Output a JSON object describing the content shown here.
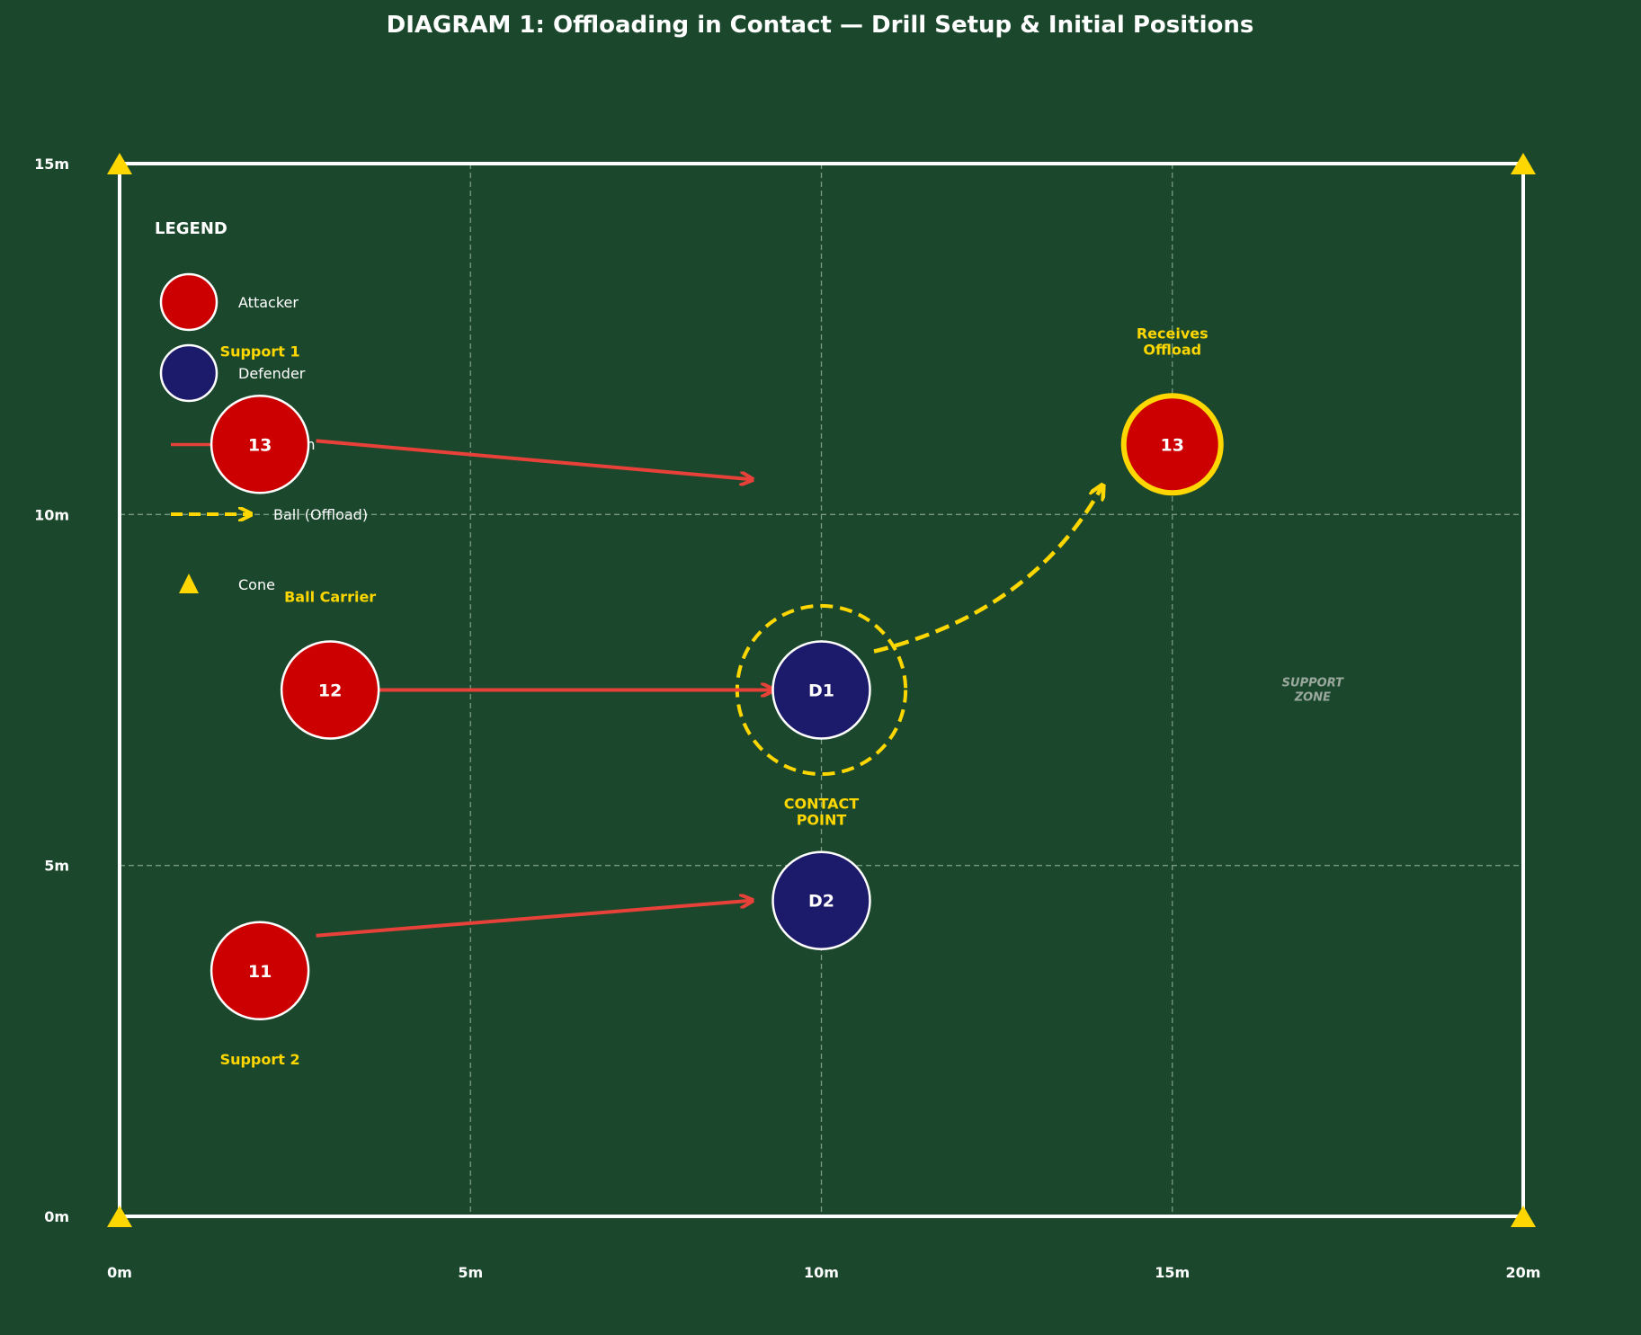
{
  "title": "DIAGRAM 1: Offloading in Contact — Drill Setup & Initial Positions",
  "colors": {
    "background": "#1b482c",
    "pitch_line": "#ffffff",
    "grid_line": "#7a9a82",
    "attacker": "#cc0000",
    "defender": "#1c1a6b",
    "run_arrow": "#e8413a",
    "ball": "#ffd700",
    "cone": "#ffd700"
  },
  "axes": {
    "x_ticks": [
      "0m",
      "5m",
      "10m",
      "15m",
      "20m"
    ],
    "y_ticks": [
      "0m",
      "5m",
      "10m",
      "15m"
    ]
  },
  "legend": {
    "title": "LEGEND",
    "items": [
      {
        "label": "Attacker",
        "icon": "attacker-circle"
      },
      {
        "label": "Defender",
        "icon": "defender-circle"
      },
      {
        "label": "Player Run",
        "icon": "run-arrow"
      },
      {
        "label": "Ball (Offload)",
        "icon": "ball-dashed-arrow"
      },
      {
        "label": "Cone",
        "icon": "cone-triangle"
      }
    ]
  },
  "players": [
    {
      "id": "13",
      "team": "attacker",
      "x_m": 2,
      "y_m": 11,
      "label": "Support 1",
      "label_pos": "above"
    },
    {
      "id": "12",
      "team": "attacker",
      "x_m": 3,
      "y_m": 7.5,
      "label": "Ball Carrier",
      "label_pos": "above"
    },
    {
      "id": "11",
      "team": "attacker",
      "x_m": 2,
      "y_m": 3.5,
      "label": "Support 2",
      "label_pos": "below"
    },
    {
      "id": "13",
      "team": "attacker",
      "x_m": 15,
      "y_m": 11,
      "label_lines": [
        "Receives",
        "Offload"
      ],
      "label_pos": "above",
      "highlight": true
    },
    {
      "id": "D1",
      "team": "defender",
      "x_m": 10,
      "y_m": 7.5
    },
    {
      "id": "D2",
      "team": "defender",
      "x_m": 10,
      "y_m": 4.5
    }
  ],
  "runs": [
    {
      "from": [
        2.8,
        11.05
      ],
      "to": [
        9,
        10.5
      ]
    },
    {
      "from": [
        3.7,
        7.5
      ],
      "to": [
        9.3,
        7.5
      ]
    },
    {
      "from": [
        2.8,
        4.0
      ],
      "to": [
        9,
        4.5
      ]
    }
  ],
  "offload": {
    "from": [
      10.75,
      8.05
    ],
    "ctrl": [
      13,
      8.6
    ],
    "to": [
      14,
      10.4
    ]
  },
  "contact_point": {
    "x_m": 10,
    "y_m": 7.5,
    "radius_m": 1.2,
    "label_lines": [
      "CONTACT",
      "POINT"
    ]
  },
  "support_zone": {
    "x_m": 17,
    "y_m": 7.5,
    "label_lines": [
      "SUPPORT",
      "ZONE"
    ]
  },
  "cones": [
    [
      0,
      0
    ],
    [
      20,
      0
    ],
    [
      0,
      15
    ],
    [
      20,
      15
    ]
  ]
}
